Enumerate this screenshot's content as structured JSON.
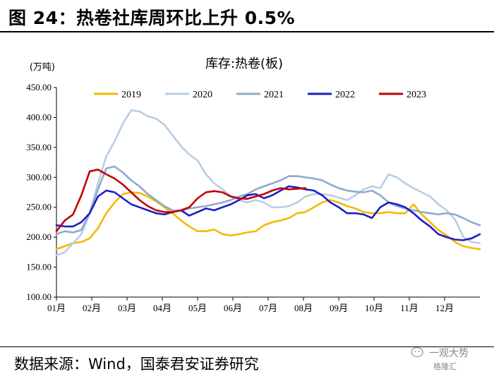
{
  "page": {
    "title": "图 24：热卷社库周环比上升 0.5%",
    "source": "数据来源：Wind，国泰君安证券研究",
    "watermark_top": "一观大势",
    "watermark_bottom": "格隆汇"
  },
  "chart_data": {
    "type": "line",
    "title": "库存:热卷(板)",
    "ylabel": "(万吨)",
    "xlabel": "",
    "ylim": [
      100,
      450
    ],
    "yticks": [
      "100.00",
      "150.00",
      "200.00",
      "250.00",
      "300.00",
      "350.00",
      "400.00",
      "450.00"
    ],
    "xticks": [
      "01月",
      "02月",
      "03月",
      "04月",
      "05月",
      "06月",
      "07月",
      "08月",
      "09月",
      "10月",
      "11月",
      "12月"
    ],
    "xlim": [
      1,
      52
    ],
    "grid": false,
    "legend_position": "top",
    "series": [
      {
        "name": "2019",
        "color": "#F5B800",
        "x": [
          1,
          2,
          3,
          4,
          5,
          6,
          7,
          8,
          9,
          10,
          11,
          12,
          13,
          14,
          15,
          16,
          17,
          18,
          19,
          20,
          21,
          22,
          23,
          24,
          25,
          26,
          27,
          28,
          29,
          30,
          31,
          32,
          33,
          34,
          35,
          36,
          37,
          38,
          39,
          40,
          41,
          42,
          43,
          44,
          45,
          46,
          47,
          48,
          49,
          50,
          51,
          52
        ],
        "values": [
          180,
          185,
          190,
          192,
          198,
          215,
          240,
          258,
          272,
          275,
          274,
          268,
          260,
          250,
          240,
          228,
          218,
          210,
          210,
          213,
          205,
          203,
          205,
          208,
          210,
          220,
          225,
          228,
          232,
          240,
          242,
          250,
          258,
          262,
          258,
          252,
          248,
          242,
          240,
          240,
          242,
          240,
          240,
          255,
          238,
          225,
          212,
          203,
          192,
          185,
          182,
          180
        ]
      },
      {
        "name": "2020",
        "color": "#B9CDE5",
        "x": [
          1,
          2,
          3,
          4,
          5,
          6,
          7,
          8,
          9,
          10,
          11,
          12,
          13,
          14,
          15,
          16,
          17,
          18,
          19,
          20,
          21,
          22,
          23,
          24,
          25,
          26,
          27,
          28,
          29,
          30,
          31,
          32,
          33,
          34,
          35,
          36,
          37,
          38,
          39,
          40,
          41,
          42,
          43,
          44,
          45,
          46,
          47,
          48,
          49,
          50,
          51,
          52
        ],
        "values": [
          170,
          175,
          190,
          205,
          240,
          290,
          335,
          360,
          390,
          412,
          410,
          402,
          398,
          388,
          370,
          352,
          338,
          328,
          305,
          290,
          280,
          268,
          262,
          258,
          262,
          258,
          250,
          250,
          252,
          258,
          268,
          272,
          272,
          270,
          266,
          262,
          270,
          280,
          285,
          282,
          305,
          300,
          290,
          282,
          275,
          268,
          255,
          245,
          230,
          200,
          192,
          190
        ]
      },
      {
        "name": "2021",
        "color": "#8EAACB",
        "x": [
          1,
          2,
          3,
          4,
          5,
          6,
          7,
          8,
          9,
          10,
          11,
          12,
          13,
          14,
          15,
          16,
          17,
          18,
          19,
          20,
          21,
          22,
          23,
          24,
          25,
          26,
          27,
          28,
          29,
          30,
          31,
          32,
          33,
          34,
          35,
          36,
          37,
          38,
          39,
          40,
          41,
          42,
          43,
          44,
          45,
          46,
          47,
          48,
          49,
          50,
          51,
          52
        ],
        "values": [
          205,
          210,
          208,
          212,
          240,
          280,
          315,
          318,
          308,
          295,
          285,
          272,
          262,
          252,
          245,
          244,
          248,
          250,
          252,
          255,
          258,
          262,
          268,
          272,
          280,
          285,
          290,
          295,
          302,
          302,
          300,
          298,
          295,
          288,
          282,
          278,
          276,
          275,
          278,
          270,
          258,
          252,
          248,
          245,
          242,
          240,
          238,
          240,
          238,
          232,
          225,
          220
        ]
      },
      {
        "name": "2022",
        "color": "#1C1CC8",
        "x": [
          1,
          2,
          3,
          4,
          5,
          6,
          7,
          8,
          9,
          10,
          11,
          12,
          13,
          14,
          15,
          16,
          17,
          18,
          19,
          20,
          21,
          22,
          23,
          24,
          25,
          26,
          27,
          28,
          29,
          30,
          31,
          32,
          33,
          34,
          35,
          36,
          37,
          38,
          39,
          40,
          41,
          42,
          43,
          44,
          45,
          46,
          47,
          48,
          49,
          50,
          51,
          52
        ],
        "values": [
          220,
          218,
          218,
          225,
          240,
          268,
          278,
          275,
          265,
          255,
          250,
          245,
          240,
          238,
          242,
          245,
          236,
          242,
          248,
          245,
          250,
          255,
          262,
          270,
          272,
          265,
          270,
          278,
          285,
          283,
          280,
          278,
          270,
          258,
          250,
          240,
          240,
          238,
          232,
          250,
          258,
          255,
          250,
          240,
          228,
          218,
          205,
          200,
          196,
          195,
          198,
          205
        ]
      },
      {
        "name": "2023",
        "color": "#C00000",
        "x": [
          1,
          2,
          3,
          4,
          5,
          6,
          7,
          8,
          9,
          10,
          11,
          12,
          13,
          14,
          15,
          16,
          17,
          18,
          19,
          20,
          21,
          22,
          23,
          24,
          25,
          26,
          27,
          28,
          29,
          30,
          31
        ],
        "values": [
          210,
          228,
          238,
          270,
          310,
          313,
          305,
          298,
          288,
          275,
          262,
          252,
          245,
          242,
          242,
          245,
          250,
          265,
          275,
          277,
          275,
          268,
          265,
          264,
          268,
          272,
          278,
          282,
          280,
          281,
          282
        ]
      }
    ]
  }
}
